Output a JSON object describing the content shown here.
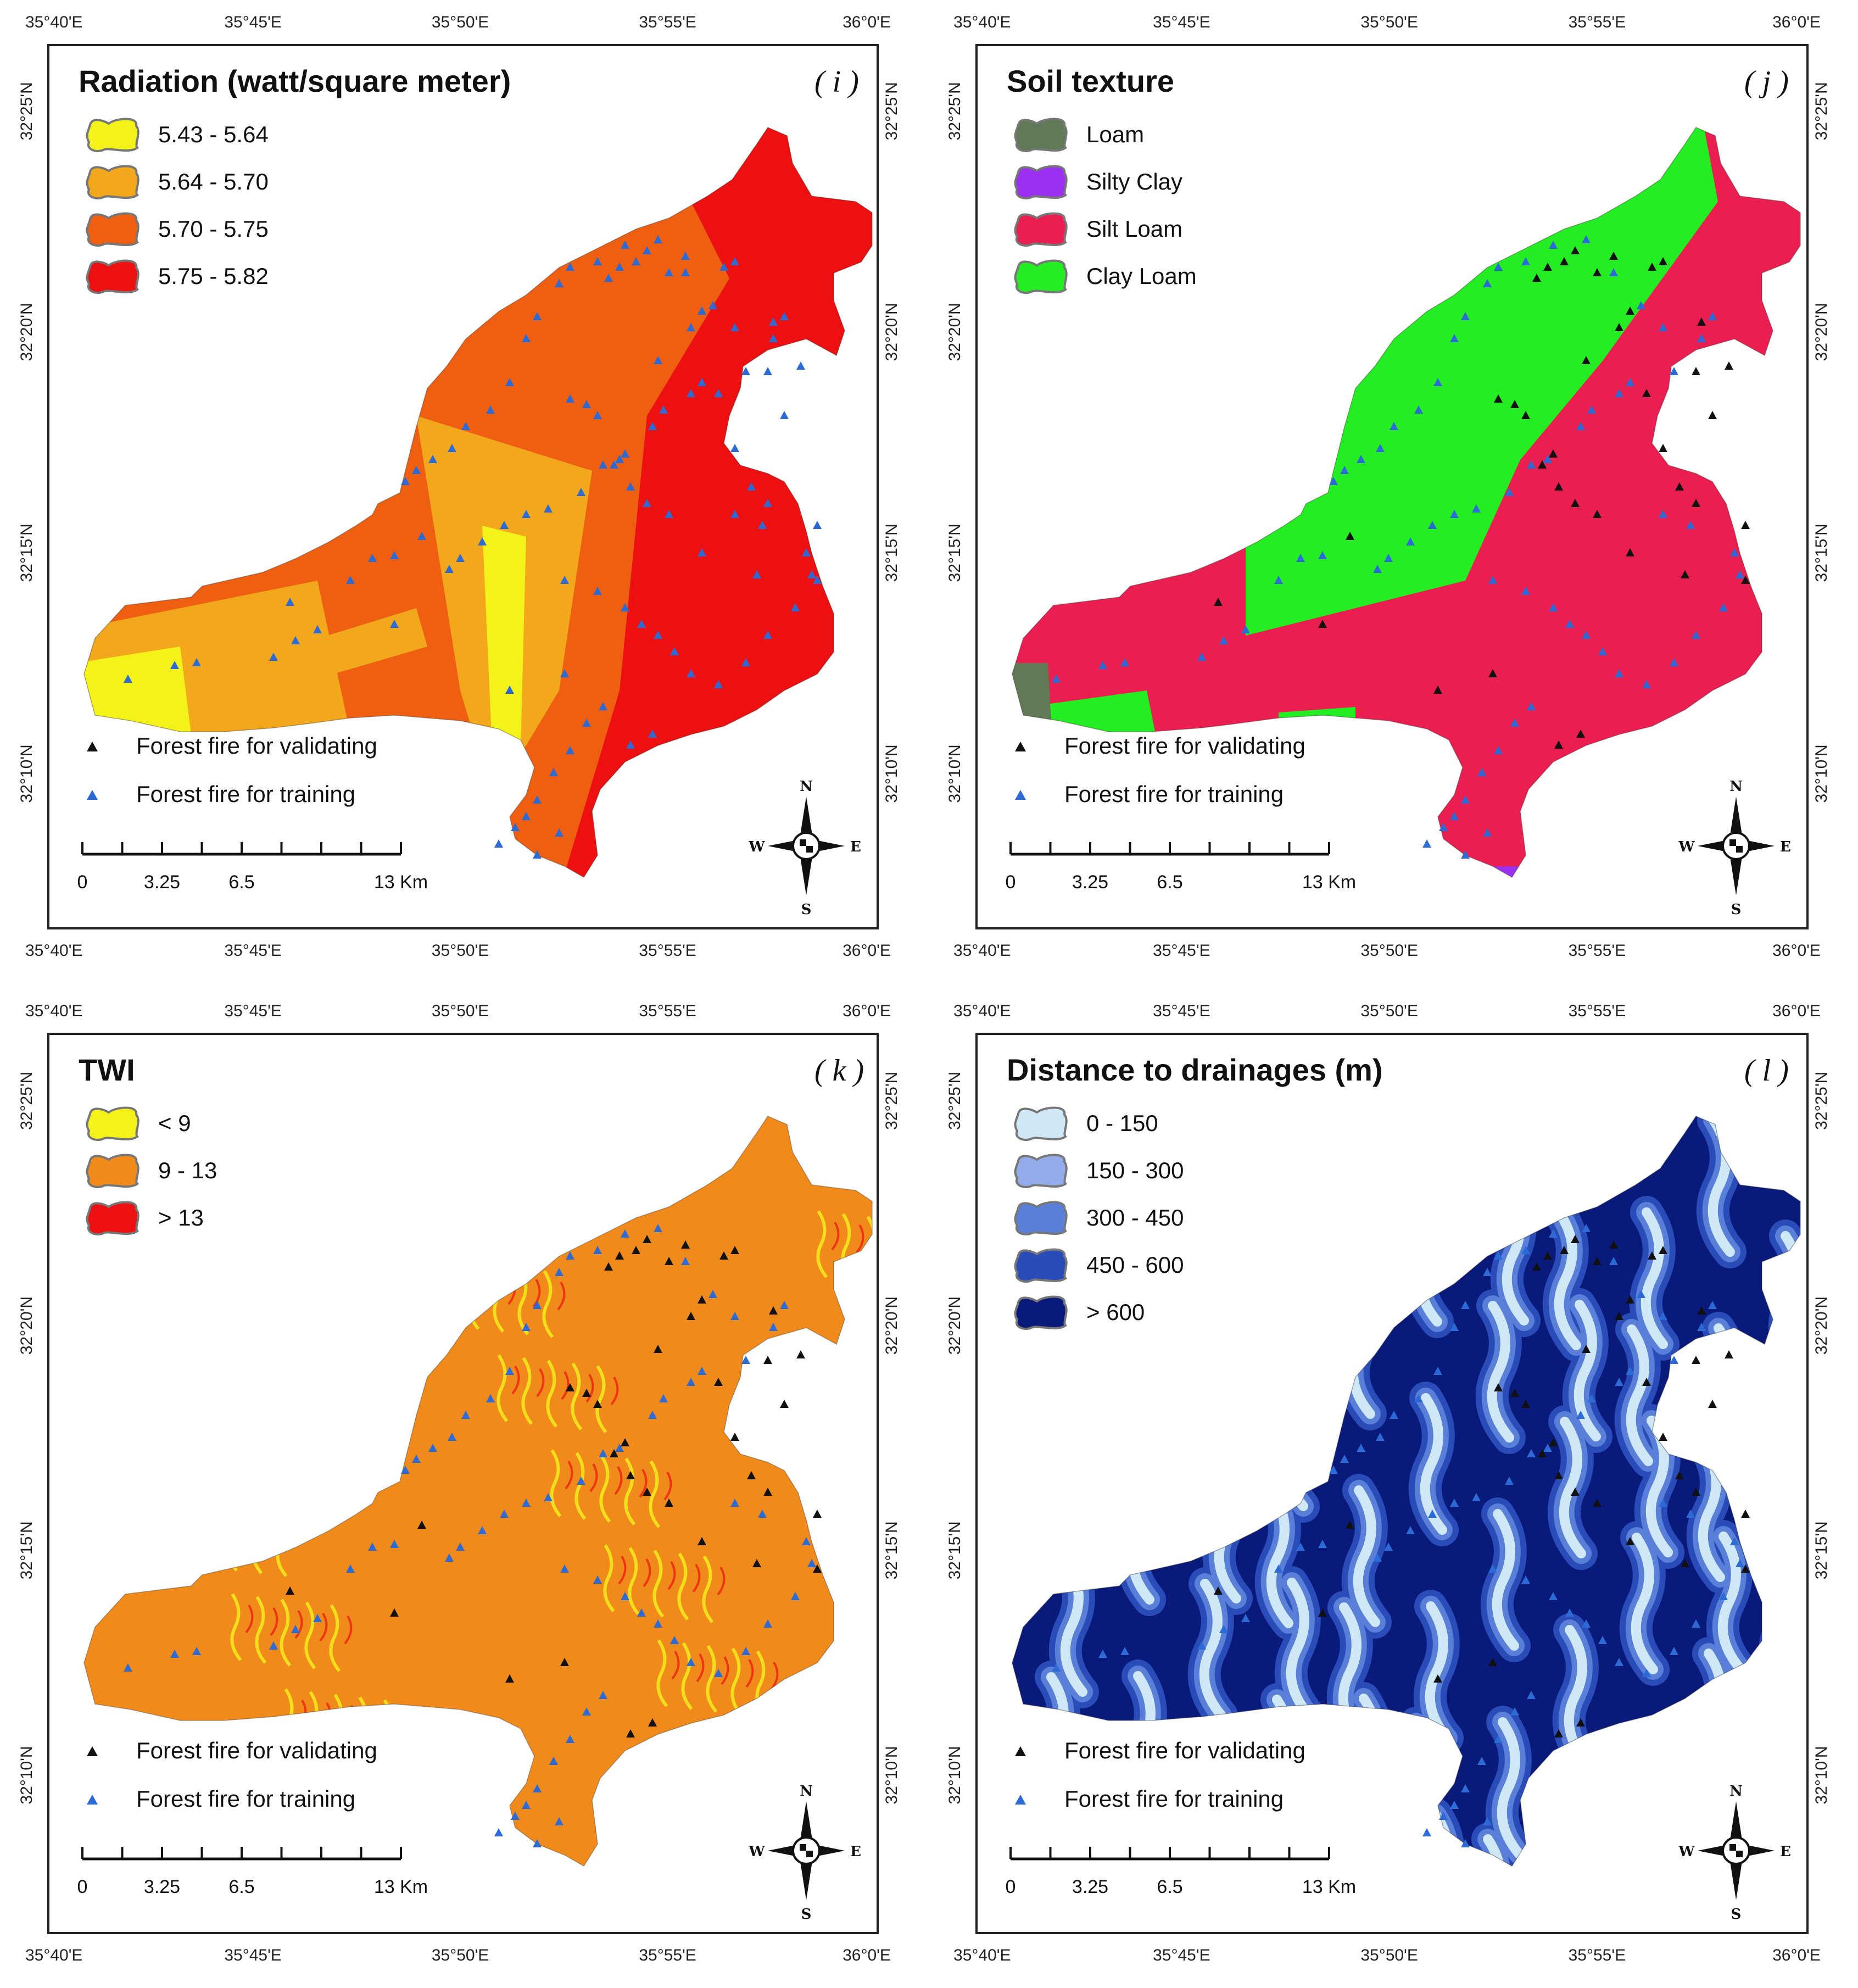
{
  "lon_labels": [
    "35°40'E",
    "35°45'E",
    "35°50'E",
    "35°55'E",
    "36°0'E"
  ],
  "lat_labels": [
    "32°25'N",
    "32°20'N",
    "32°15'N",
    "32°10'N"
  ],
  "panels": [
    {
      "id": "( i )",
      "title": "Radiation (watt/square meter)",
      "type": "radiation",
      "legend": [
        {
          "label": "5.43 - 5.64",
          "color": "#f3f31a"
        },
        {
          "label": "5.64 - 5.70",
          "color": "#f2a81a"
        },
        {
          "label": "5.70 - 5.75",
          "color": "#ee5f12"
        },
        {
          "label": "5.75 - 5.82",
          "color": "#ee1010"
        }
      ],
      "points": "blue"
    },
    {
      "id": "( j )",
      "title": "Soil texture",
      "type": "soil",
      "legend": [
        {
          "label": "Loam",
          "color": "#5f7a54"
        },
        {
          "label": "Silty Clay",
          "color": "#9b30f0"
        },
        {
          "label": "Silt Loam",
          "color": "#ea1f4f"
        },
        {
          "label": "Clay Loam",
          "color": "#22ee22"
        }
      ],
      "points": "mixed"
    },
    {
      "id": "( k )",
      "title": "TWI",
      "type": "twi",
      "legend": [
        {
          "label": "< 9",
          "color": "#f3f31a"
        },
        {
          "label": "9 - 13",
          "color": "#f08a1a"
        },
        {
          "label": "> 13",
          "color": "#ee1010"
        }
      ],
      "points": "mixed"
    },
    {
      "id": "( l )",
      "title": "Distance to drainages (m)",
      "type": "drainage",
      "legend": [
        {
          "label": "0 - 150",
          "color": "#cfe8f7"
        },
        {
          "label": "150 - 300",
          "color": "#93abe8"
        },
        {
          "label": "300 - 450",
          "color": "#5a7fd9"
        },
        {
          "label": "450 - 600",
          "color": "#2a4cb8"
        },
        {
          "label": "> 600",
          "color": "#0a1a7a"
        }
      ],
      "points": "mixed"
    }
  ],
  "points_legend": {
    "validating": "Forest fire for validating",
    "training": "Forest fire for training",
    "validating_color": "#111111",
    "training_color": "#2c6bd6"
  },
  "scale_bar": {
    "labels": [
      "0",
      "3.25",
      "6.5",
      "13 Km"
    ]
  },
  "north_arrow": {
    "n": "N",
    "s": "S",
    "e": "E",
    "w": "W"
  }
}
